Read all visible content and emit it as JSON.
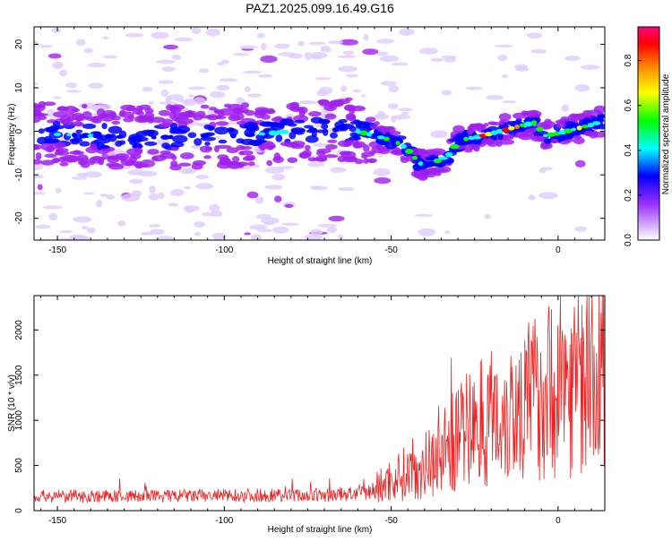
{
  "title": "PAZ1.2025.099.16.49.G16",
  "chart_data": [
    {
      "type": "heatmap",
      "xlabel": "Height of straight line (km)",
      "ylabel": "Frequency (Hz)",
      "xlim": [
        -157,
        14
      ],
      "ylim": [
        -25,
        24
      ],
      "xticks": [
        -150,
        -100,
        -50,
        0
      ],
      "yticks": [
        -20,
        -10,
        0,
        10,
        20
      ],
      "colorbar": {
        "label": "Normalized spectral amplitude",
        "range": [
          0,
          0.95
        ],
        "ticks": [
          "0.0",
          "0.2",
          "0.4",
          "0.6",
          "0.8"
        ]
      },
      "ridge": {
        "x": [
          -157,
          -140,
          -125,
          -110,
          -95,
          -80,
          -70,
          -60,
          -55,
          -50,
          -47,
          -44,
          -42,
          -40,
          -37,
          -35,
          -32,
          -30,
          -25,
          -20,
          -15,
          -10,
          -7,
          -4,
          0,
          5,
          10,
          14
        ],
        "y": [
          -0.5,
          -1,
          -1.5,
          -1.2,
          -1,
          0,
          0.5,
          0,
          -1,
          -2,
          -3,
          -5,
          -7,
          -8,
          -7,
          -6.5,
          -5,
          -2,
          -1.5,
          -0.5,
          0.5,
          1.5,
          2,
          -1,
          -0.5,
          0.5,
          1.5,
          2.5
        ]
      },
      "color_scale": [
        "#e0ccff",
        "#a020f0",
        "#0000ff",
        "#00ffff",
        "#00ff00",
        "#ffff00",
        "#ff8000",
        "#ff0000",
        "#ff0080"
      ]
    },
    {
      "type": "line",
      "xlabel": "Height of straight line (km)",
      "ylabel": "SNR (10 * v/v)",
      "xlim": [
        -157,
        14
      ],
      "ylim": [
        0,
        2380
      ],
      "xticks": [
        -150,
        -100,
        -50,
        0
      ],
      "yticks": [
        0,
        500,
        1000,
        1500,
        2000
      ],
      "series_color": "#ee2222",
      "trend": {
        "x": [
          -157,
          -120,
          -90,
          -70,
          -57,
          -52,
          -48,
          -45,
          -40,
          -35,
          -30,
          -25,
          -20,
          -15,
          -10,
          -5,
          0,
          5,
          10,
          14
        ],
        "y": [
          160,
          160,
          170,
          170,
          200,
          300,
          380,
          420,
          500,
          650,
          800,
          950,
          1050,
          1100,
          1200,
          1300,
          1380,
          1450,
          1500,
          1500
        ]
      }
    }
  ]
}
